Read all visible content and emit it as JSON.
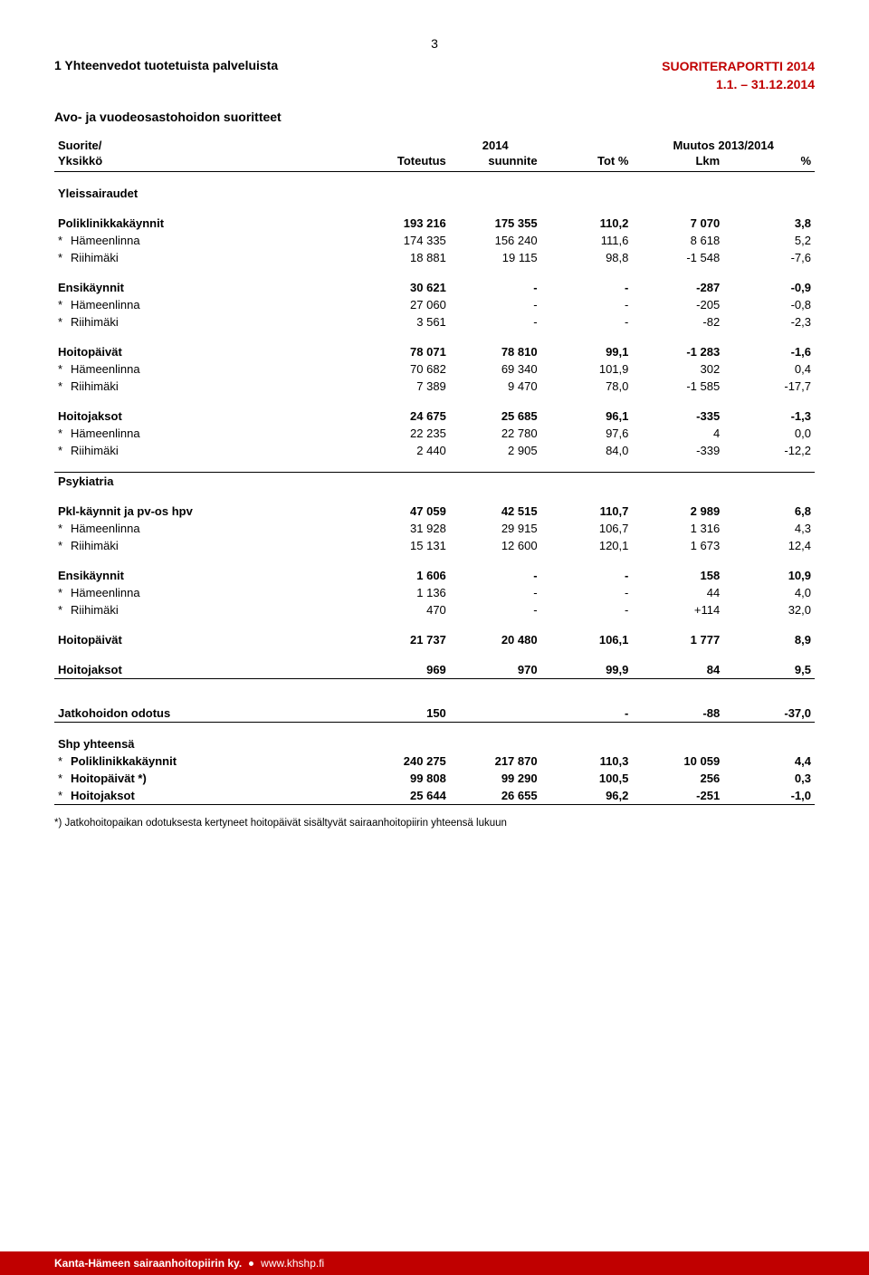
{
  "page_number": "3",
  "report_title_line1": "SUORITERAPORTTI 2014",
  "report_title_line2": "1.1. – 31.12.2014",
  "section_number_title": "1   Yhteenvedot tuotetuista palveluista",
  "section_subtitle": "Avo- ja vuodeosastohoidon suoritteet",
  "col_headers": {
    "suorite": "Suorite/",
    "yksikko": "Yksikkö",
    "year": "2014",
    "toteutus": "Toteutus",
    "suunnite": "suunnite",
    "tot_pct": "Tot %",
    "muutos": "Muutos 2013/2014",
    "lkm": "Lkm",
    "pct": "%"
  },
  "groups": [
    {
      "title": "Yleissairaudet",
      "sections": [
        {
          "label": "Poliklinikkakäynnit",
          "bold": true,
          "vals": [
            "193 216",
            "175 355",
            "110,2",
            "7 070",
            "3,8"
          ],
          "subs": [
            {
              "label": "Hämeenlinna",
              "vals": [
                "174 335",
                "156 240",
                "111,6",
                "8 618",
                "5,2"
              ]
            },
            {
              "label": "Riihimäki",
              "vals": [
                "18 881",
                "19 115",
                "98,8",
                "-1 548",
                "-7,6"
              ]
            }
          ]
        },
        {
          "label": "Ensikäynnit",
          "bold": true,
          "vals": [
            "30 621",
            "-",
            "-",
            "-287",
            "-0,9"
          ],
          "subs": [
            {
              "label": "Hämeenlinna",
              "vals": [
                "27 060",
                "-",
                "-",
                "-205",
                "-0,8"
              ]
            },
            {
              "label": "Riihimäki",
              "vals": [
                "3 561",
                "-",
                "-",
                "-82",
                "-2,3"
              ]
            }
          ]
        },
        {
          "label": "Hoitopäivät",
          "bold": true,
          "vals": [
            "78 071",
            "78 810",
            "99,1",
            "-1 283",
            "-1,6"
          ],
          "subs": [
            {
              "label": "Hämeenlinna",
              "vals": [
                "70 682",
                "69 340",
                "101,9",
                "302",
                "0,4"
              ]
            },
            {
              "label": "Riihimäki",
              "vals": [
                "7 389",
                "9 470",
                "78,0",
                "-1 585",
                "-17,7"
              ]
            }
          ]
        },
        {
          "label": "Hoitojaksot",
          "bold": true,
          "vals": [
            "24 675",
            "25 685",
            "96,1",
            "-335",
            "-1,3"
          ],
          "subs": [
            {
              "label": "Hämeenlinna",
              "vals": [
                "22 235",
                "22 780",
                "97,6",
                "4",
                "0,0"
              ]
            },
            {
              "label": "Riihimäki",
              "vals": [
                "2 440",
                "2 905",
                "84,0",
                "-339",
                "-12,2"
              ]
            }
          ]
        }
      ]
    },
    {
      "title": "Psykiatria",
      "border_top": true,
      "sections": [
        {
          "label": "Pkl-käynnit ja pv-os  hpv",
          "bold": true,
          "vals": [
            "47 059",
            "42 515",
            "110,7",
            "2 989",
            "6,8"
          ],
          "subs": [
            {
              "label": "Hämeenlinna",
              "vals": [
                "31 928",
                "29 915",
                "106,7",
                "1 316",
                "4,3"
              ]
            },
            {
              "label": "Riihimäki",
              "vals": [
                "15 131",
                "12 600",
                "120,1",
                "1 673",
                "12,4"
              ]
            }
          ]
        },
        {
          "label": "Ensikäynnit",
          "bold": true,
          "vals": [
            "1 606",
            "-",
            "-",
            "158",
            "10,9"
          ],
          "subs": [
            {
              "label": "Hämeenlinna",
              "vals": [
                "1 136",
                "-",
                "-",
                "44",
                "4,0"
              ]
            },
            {
              "label": "Riihimäki",
              "vals": [
                "470",
                "-",
                "-",
                "+114",
                "32,0"
              ]
            }
          ]
        },
        {
          "label": "Hoitopäivät",
          "bold": true,
          "vals": [
            "21 737",
            "20 480",
            "106,1",
            "1 777",
            "8,9"
          ],
          "subs": []
        },
        {
          "label": "Hoitojaksot",
          "bold": true,
          "vals": [
            "969",
            "970",
            "99,9",
            "84",
            "9,5"
          ],
          "subs": [],
          "border_bottom": true
        }
      ]
    }
  ],
  "jatkohoito": {
    "label": "Jatkohoidon odotus",
    "vals": [
      "150",
      "",
      "-",
      "-88",
      "-37,0"
    ]
  },
  "shp": {
    "title": "Shp yhteensä",
    "rows": [
      {
        "label": "Poliklinikkakäynnit",
        "vals": [
          "240 275",
          "217 870",
          "110,3",
          "10 059",
          "4,4"
        ]
      },
      {
        "label": "Hoitopäivät *)",
        "vals": [
          "99 808",
          "99 290",
          "100,5",
          "256",
          "0,3"
        ]
      },
      {
        "label": "Hoitojaksot",
        "vals": [
          "25 644",
          "26 655",
          "96,2",
          "-251",
          "-1,0"
        ]
      }
    ]
  },
  "footnote": "*) Jatkohoitopaikan odotuksesta kertyneet hoitopäivät sisältyvät sairaanhoitopiirin yhteensä lukuun",
  "footer_org": "Kanta-Hämeen sairaanhoitopiirin ky.",
  "footer_url": "www.khshp.fi"
}
